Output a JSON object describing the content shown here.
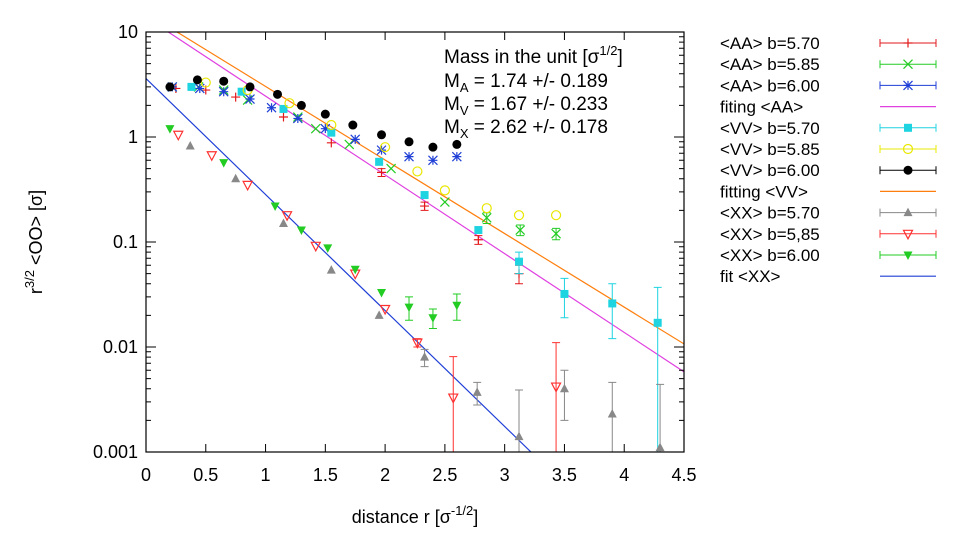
{
  "chart_data": {
    "type": "scatter",
    "xlabel": "distance r  [σ",
    "xlabel_sup": "-1/2",
    "xlabel_end": "]",
    "ylabel_pre": "r",
    "ylabel_sup": "3/2",
    "ylabel_main": " <OO>  [σ]",
    "y_scale": "log",
    "xlim": [
      0,
      4.5
    ],
    "ylim": [
      0.001,
      10
    ],
    "x_ticks": [
      "0",
      "0.5",
      "1",
      "1.5",
      "2",
      "2.5",
      "3",
      "3.5",
      "4",
      "4.5"
    ],
    "x_tick_values": [
      0,
      0.5,
      1,
      1.5,
      2,
      2.5,
      3,
      3.5,
      4,
      4.5
    ],
    "y_ticks": [
      "0.001",
      "0.01",
      "0.1",
      "1",
      "10"
    ],
    "y_tick_values": [
      0.001,
      0.01,
      0.1,
      1,
      10
    ],
    "legend_position": "right",
    "annotation": {
      "line1": "Mass  in the unit [σ",
      "line1_sup": "1/2",
      "line1_end": "]",
      "masses": [
        {
          "sym": "M",
          "sub": "A",
          "text": " = 1.74 +/- 0.189"
        },
        {
          "sym": "M",
          "sub": "V",
          "text": " = 1.67 +/- 0.233"
        },
        {
          "sym": "M",
          "sub": "X",
          "text": " = 2.62 +/- 0.178"
        }
      ]
    },
    "series": [
      {
        "name": "<AA> b=5.70",
        "color": "#e31a1c",
        "marker": "plus",
        "points": [
          [
            0.25,
            2.9
          ],
          [
            0.5,
            2.8
          ],
          [
            0.75,
            2.4
          ],
          [
            1.15,
            1.55
          ],
          [
            1.55,
            0.88
          ],
          [
            1.97,
            0.46
          ],
          [
            2.33,
            0.22
          ],
          [
            2.78,
            0.105
          ],
          [
            3.12,
            0.05
          ]
        ],
        "err": [
          0,
          0,
          0,
          0,
          0,
          0.04,
          0.02,
          0.01,
          0.01
        ]
      },
      {
        "name": "<AA> b=5.85",
        "color": "#22cc22",
        "marker": "cross",
        "points": [
          [
            0.22,
            3.0
          ],
          [
            0.44,
            3.0
          ],
          [
            0.65,
            2.8
          ],
          [
            0.85,
            2.25
          ],
          [
            1.27,
            1.55
          ],
          [
            1.42,
            1.2
          ],
          [
            1.7,
            0.85
          ],
          [
            2.05,
            0.5
          ],
          [
            2.5,
            0.24
          ],
          [
            2.85,
            0.17
          ],
          [
            3.13,
            0.13
          ],
          [
            3.43,
            0.12
          ]
        ],
        "err": [
          0,
          0,
          0,
          0,
          0,
          0,
          0,
          0,
          0,
          0.02,
          0.015,
          0.015
        ]
      },
      {
        "name": "<AA> b=6.00",
        "color": "#1f3fd6",
        "marker": "star",
        "points": [
          [
            0.22,
            3.0
          ],
          [
            0.45,
            2.9
          ],
          [
            0.65,
            2.7
          ],
          [
            0.87,
            2.3
          ],
          [
            1.05,
            1.9
          ],
          [
            1.27,
            1.5
          ],
          [
            1.5,
            1.2
          ],
          [
            1.75,
            0.95
          ],
          [
            1.97,
            0.75
          ],
          [
            2.2,
            0.65
          ],
          [
            2.4,
            0.6
          ],
          [
            2.6,
            0.65
          ]
        ],
        "err": [
          0,
          0,
          0,
          0,
          0,
          0,
          0,
          0,
          0,
          0,
          0,
          0
        ]
      },
      {
        "name": "fiting  <AA>",
        "color": "#e040e0",
        "marker": "fitline",
        "line": [
          [
            0,
            13.8
          ],
          [
            4.5,
            0.0058
          ]
        ]
      },
      {
        "name": "<VV> b=5.70",
        "color": "#1ed4e0",
        "marker": "square",
        "points": [
          [
            0.38,
            3.0
          ],
          [
            0.8,
            2.7
          ],
          [
            1.15,
            1.85
          ],
          [
            1.55,
            1.1
          ],
          [
            1.95,
            0.58
          ],
          [
            2.33,
            0.28
          ],
          [
            2.78,
            0.13
          ],
          [
            3.12,
            0.065
          ],
          [
            3.5,
            0.032
          ],
          [
            3.9,
            0.026
          ],
          [
            4.28,
            0.017
          ]
        ],
        "err": [
          0,
          0,
          0,
          0,
          0,
          0,
          0,
          0.015,
          0.013,
          0.014,
          0.02
        ]
      },
      {
        "name": "<VV> b=5.85",
        "color": "#e8e800",
        "marker": "circle-open",
        "points": [
          [
            0.5,
            3.3
          ],
          [
            0.85,
            2.8
          ],
          [
            1.2,
            2.1
          ],
          [
            1.55,
            1.3
          ],
          [
            2.0,
            0.8
          ],
          [
            2.27,
            0.47
          ],
          [
            2.5,
            0.31
          ],
          [
            2.85,
            0.21
          ],
          [
            3.12,
            0.18
          ],
          [
            3.43,
            0.18
          ]
        ],
        "err": [
          0,
          0,
          0,
          0,
          0,
          0,
          0,
          0,
          0,
          0
        ]
      },
      {
        "name": "<VV> b=6.00",
        "color": "#000000",
        "marker": "circle",
        "points": [
          [
            0.2,
            3.0
          ],
          [
            0.43,
            3.5
          ],
          [
            0.65,
            3.4
          ],
          [
            0.87,
            3.0
          ],
          [
            1.1,
            2.55
          ],
          [
            1.3,
            2.0
          ],
          [
            1.5,
            1.65
          ],
          [
            1.73,
            1.3
          ],
          [
            1.97,
            1.05
          ],
          [
            2.2,
            0.9
          ],
          [
            2.4,
            0.8
          ],
          [
            2.6,
            0.85
          ]
        ],
        "err": [
          0,
          0,
          0,
          0,
          0,
          0,
          0,
          0,
          0,
          0,
          0,
          0
        ]
      },
      {
        "name": "fitting <VV>",
        "color": "#ff7f0e",
        "marker": "fitline",
        "line": [
          [
            0,
            15.2
          ],
          [
            4.5,
            0.0107
          ]
        ]
      },
      {
        "name": "<XX> b=5.70",
        "color": "#888888",
        "marker": "triangle",
        "points": [
          [
            0.37,
            0.82
          ],
          [
            0.75,
            0.4
          ],
          [
            1.15,
            0.15
          ],
          [
            1.55,
            0.054
          ],
          [
            1.95,
            0.02
          ],
          [
            2.33,
            0.008
          ],
          [
            2.77,
            0.0037
          ],
          [
            3.12,
            0.0014
          ],
          [
            3.5,
            0.004
          ],
          [
            3.9,
            0.0023
          ],
          [
            4.3,
            0.0011
          ]
        ],
        "err": [
          0,
          0,
          0,
          0,
          0,
          0.0015,
          0.0009,
          0.0025,
          0.002,
          0.0023,
          0.0033
        ]
      },
      {
        "name": "<XX> b=5,85",
        "color": "#ff3030",
        "marker": "triangle-down-open",
        "points": [
          [
            0.27,
            1.05
          ],
          [
            0.55,
            0.67
          ],
          [
            0.85,
            0.35
          ],
          [
            1.18,
            0.18
          ],
          [
            1.42,
            0.092
          ],
          [
            1.75,
            0.05
          ],
          [
            2.0,
            0.023
          ],
          [
            2.27,
            0.011
          ],
          [
            2.57,
            0.0033
          ],
          [
            3.43,
            0.0042
          ]
        ],
        "err": [
          0,
          0,
          0,
          0,
          0,
          0,
          0,
          0.001,
          0.0048,
          0.0068
        ]
      },
      {
        "name": "<XX> b=6.00",
        "color": "#22cc22",
        "marker": "triangle-down",
        "points": [
          [
            0.2,
            1.2
          ],
          [
            0.65,
            0.57
          ],
          [
            1.08,
            0.22
          ],
          [
            1.3,
            0.13
          ],
          [
            1.52,
            0.088
          ],
          [
            1.75,
            0.055
          ],
          [
            1.97,
            0.033
          ],
          [
            2.2,
            0.024
          ],
          [
            2.4,
            0.019
          ],
          [
            2.6,
            0.025
          ]
        ],
        "err": [
          0,
          0,
          0,
          0,
          0,
          0,
          0,
          0.006,
          0.004,
          0.007
        ]
      },
      {
        "name": "fit <XX>",
        "color": "#1f3fd6",
        "marker": "fitline",
        "line": [
          [
            0,
            3.6
          ],
          [
            3.22,
            0.001
          ]
        ]
      }
    ]
  }
}
